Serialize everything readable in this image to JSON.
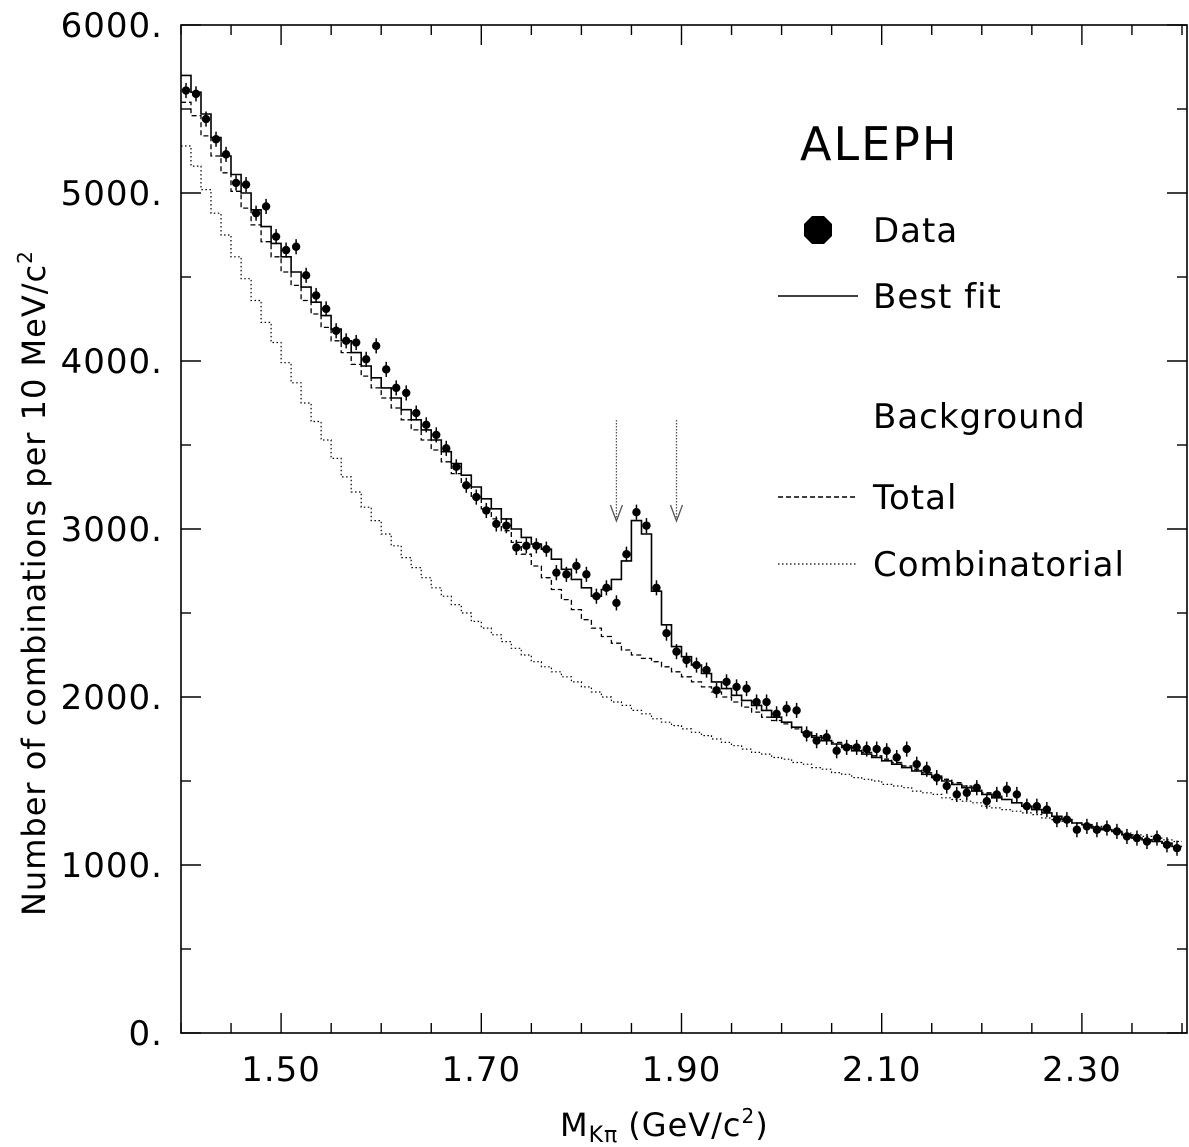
{
  "chart_data": {
    "type": "scatter",
    "experiment_label": "ALEPH",
    "xlabel": "M",
    "xlabel_subscript": "Kπ",
    "xlabel_unit": "(GeV/c",
    "xlabel_unit_power": "2",
    "xlabel_unit_close": ")",
    "ylabel": "Number of combinations per 10 MeV/c",
    "ylabel_power": "2",
    "xlim": [
      1.4,
      2.405
    ],
    "ylim": [
      0,
      6000
    ],
    "x_ticks": [
      1.5,
      1.7,
      1.9,
      2.1,
      2.3
    ],
    "x_tick_labels": [
      "1.50",
      "1.70",
      "1.90",
      "2.10",
      "2.30"
    ],
    "y_ticks": [
      0,
      1000,
      2000,
      3000,
      4000,
      5000,
      6000
    ],
    "y_tick_labels": [
      "0.",
      "1000.",
      "2000.",
      "3000.",
      "4000.",
      "5000.",
      "6000."
    ],
    "legend": {
      "data": "Data",
      "best_fit": "Best fit",
      "background_header": "Background",
      "total": "Total",
      "combinatorial": "Combinatorial"
    },
    "signal_window_arrows_x": [
      1.835,
      1.895
    ],
    "series": [
      {
        "name": "Data",
        "style": "points-with-errors",
        "x": [
          1.405,
          1.415,
          1.425,
          1.435,
          1.445,
          1.455,
          1.465,
          1.475,
          1.485,
          1.495,
          1.505,
          1.515,
          1.525,
          1.535,
          1.545,
          1.555,
          1.565,
          1.575,
          1.585,
          1.595,
          1.605,
          1.615,
          1.625,
          1.635,
          1.645,
          1.655,
          1.665,
          1.675,
          1.685,
          1.695,
          1.705,
          1.715,
          1.725,
          1.735,
          1.745,
          1.755,
          1.765,
          1.775,
          1.785,
          1.795,
          1.805,
          1.815,
          1.825,
          1.835,
          1.845,
          1.855,
          1.865,
          1.875,
          1.885,
          1.895,
          1.905,
          1.915,
          1.925,
          1.935,
          1.945,
          1.955,
          1.965,
          1.975,
          1.985,
          1.995,
          2.005,
          2.015,
          2.025,
          2.035,
          2.045,
          2.055,
          2.065,
          2.075,
          2.085,
          2.095,
          2.105,
          2.115,
          2.125,
          2.135,
          2.145,
          2.155,
          2.165,
          2.175,
          2.185,
          2.195,
          2.205,
          2.215,
          2.225,
          2.235,
          2.245,
          2.255,
          2.265,
          2.275,
          2.285,
          2.295,
          2.305,
          2.315,
          2.325,
          2.335,
          2.345,
          2.355,
          2.365,
          2.375,
          2.385,
          2.395
        ],
        "y": [
          5610,
          5590,
          5440,
          5320,
          5230,
          5060,
          5050,
          4880,
          4920,
          4740,
          4660,
          4680,
          4510,
          4390,
          4310,
          4180,
          4120,
          4110,
          4010,
          4090,
          3950,
          3840,
          3810,
          3690,
          3620,
          3560,
          3480,
          3370,
          3260,
          3190,
          3110,
          3030,
          3020,
          2890,
          2900,
          2900,
          2880,
          2740,
          2730,
          2780,
          2730,
          2600,
          2650,
          2560,
          2850,
          3100,
          3020,
          2650,
          2380,
          2270,
          2220,
          2190,
          2160,
          2040,
          2090,
          2060,
          2050,
          1970,
          1970,
          1900,
          1930,
          1920,
          1780,
          1740,
          1760,
          1680,
          1700,
          1700,
          1690,
          1690,
          1680,
          1640,
          1690,
          1600,
          1570,
          1520,
          1470,
          1420,
          1430,
          1460,
          1380,
          1420,
          1450,
          1420,
          1350,
          1350,
          1330,
          1270,
          1270,
          1210,
          1230,
          1210,
          1220,
          1200,
          1170,
          1160,
          1140,
          1160,
          1120,
          1100
        ],
        "yerr": 45
      },
      {
        "name": "Best fit",
        "style": "solid-histogram",
        "x": [
          1.4,
          1.41,
          1.42,
          1.43,
          1.44,
          1.45,
          1.46,
          1.47,
          1.48,
          1.49,
          1.5,
          1.51,
          1.52,
          1.53,
          1.54,
          1.55,
          1.56,
          1.57,
          1.58,
          1.59,
          1.6,
          1.61,
          1.62,
          1.63,
          1.64,
          1.65,
          1.66,
          1.67,
          1.68,
          1.69,
          1.7,
          1.71,
          1.72,
          1.73,
          1.74,
          1.75,
          1.76,
          1.77,
          1.78,
          1.79,
          1.8,
          1.81,
          1.82,
          1.83,
          1.84,
          1.85,
          1.86,
          1.87,
          1.88,
          1.89,
          1.9,
          1.91,
          1.92,
          1.93,
          1.94,
          1.95,
          1.96,
          1.97,
          1.98,
          1.99,
          2.0,
          2.01,
          2.02,
          2.03,
          2.04,
          2.05,
          2.06,
          2.07,
          2.08,
          2.09,
          2.1,
          2.11,
          2.12,
          2.13,
          2.14,
          2.15,
          2.16,
          2.17,
          2.18,
          2.19,
          2.2,
          2.21,
          2.22,
          2.23,
          2.24,
          2.25,
          2.26,
          2.27,
          2.28,
          2.29,
          2.3,
          2.31,
          2.32,
          2.33,
          2.34,
          2.35,
          2.36,
          2.37,
          2.38,
          2.39
        ],
        "y": [
          5700,
          5600,
          5470,
          5330,
          5220,
          5110,
          5000,
          4900,
          4800,
          4700,
          4620,
          4530,
          4440,
          4350,
          4270,
          4190,
          4120,
          4050,
          3970,
          3900,
          3840,
          3780,
          3710,
          3650,
          3590,
          3530,
          3460,
          3390,
          3320,
          3250,
          3180,
          3120,
          3060,
          3000,
          2950,
          2910,
          2880,
          2820,
          2760,
          2700,
          2650,
          2600,
          2640,
          2700,
          2810,
          3050,
          2970,
          2630,
          2430,
          2300,
          2240,
          2190,
          2140,
          2090,
          2050,
          2010,
          1980,
          1950,
          1920,
          1880,
          1850,
          1820,
          1790,
          1760,
          1740,
          1720,
          1700,
          1680,
          1660,
          1640,
          1620,
          1600,
          1580,
          1560,
          1540,
          1520,
          1500,
          1480,
          1460,
          1440,
          1420,
          1400,
          1390,
          1370,
          1350,
          1330,
          1310,
          1290,
          1270,
          1250,
          1240,
          1220,
          1210,
          1200,
          1180,
          1160,
          1150,
          1140,
          1130,
          1110
        ]
      },
      {
        "name": "Total",
        "style": "dashed-histogram",
        "x": [
          1.4,
          1.41,
          1.42,
          1.43,
          1.44,
          1.45,
          1.46,
          1.47,
          1.48,
          1.49,
          1.5,
          1.51,
          1.52,
          1.53,
          1.54,
          1.55,
          1.56,
          1.57,
          1.58,
          1.59,
          1.6,
          1.61,
          1.62,
          1.63,
          1.64,
          1.65,
          1.66,
          1.67,
          1.68,
          1.69,
          1.7,
          1.71,
          1.72,
          1.73,
          1.74,
          1.75,
          1.76,
          1.77,
          1.78,
          1.79,
          1.8,
          1.81,
          1.82,
          1.83,
          1.84,
          1.85,
          1.86,
          1.87,
          1.88,
          1.89,
          1.9,
          1.91,
          1.92,
          1.93,
          1.94,
          1.95,
          1.96,
          1.97,
          1.98,
          1.99,
          2.0,
          2.01,
          2.02,
          2.03,
          2.04,
          2.05,
          2.06,
          2.07,
          2.08,
          2.09,
          2.1,
          2.11,
          2.12,
          2.13,
          2.14,
          2.15,
          2.16,
          2.17,
          2.18,
          2.19,
          2.2,
          2.21,
          2.22,
          2.23,
          2.24,
          2.25,
          2.26,
          2.27,
          2.28,
          2.29,
          2.3,
          2.31,
          2.32,
          2.33,
          2.34,
          2.35,
          2.36,
          2.37,
          2.38,
          2.39
        ],
        "y": [
          5540,
          5460,
          5340,
          5220,
          5120,
          5010,
          4910,
          4810,
          4710,
          4620,
          4530,
          4450,
          4360,
          4280,
          4200,
          4120,
          4050,
          3980,
          3910,
          3840,
          3780,
          3720,
          3650,
          3590,
          3530,
          3470,
          3400,
          3330,
          3260,
          3190,
          3120,
          3060,
          2990,
          2920,
          2850,
          2780,
          2710,
          2640,
          2580,
          2520,
          2460,
          2410,
          2360,
          2320,
          2280,
          2250,
          2230,
          2210,
          2180,
          2150,
          2120,
          2090,
          2060,
          2030,
          2000,
          1970,
          1940,
          1910,
          1880,
          1860,
          1840,
          1810,
          1790,
          1770,
          1750,
          1730,
          1710,
          1690,
          1670,
          1650,
          1630,
          1610,
          1590,
          1570,
          1550,
          1530,
          1510,
          1490,
          1470,
          1450,
          1430,
          1410,
          1390,
          1370,
          1350,
          1330,
          1310,
          1290,
          1270,
          1250,
          1240,
          1220,
          1210,
          1200,
          1180,
          1160,
          1150,
          1140,
          1130,
          1110
        ]
      },
      {
        "name": "Combinatorial",
        "style": "dotted-histogram",
        "x": [
          1.4,
          1.41,
          1.42,
          1.43,
          1.44,
          1.45,
          1.46,
          1.47,
          1.48,
          1.49,
          1.5,
          1.51,
          1.52,
          1.53,
          1.54,
          1.55,
          1.56,
          1.57,
          1.58,
          1.59,
          1.6,
          1.61,
          1.62,
          1.63,
          1.64,
          1.65,
          1.66,
          1.67,
          1.68,
          1.69,
          1.7,
          1.71,
          1.72,
          1.73,
          1.74,
          1.75,
          1.76,
          1.77,
          1.78,
          1.79,
          1.8,
          1.81,
          1.82,
          1.83,
          1.84,
          1.85,
          1.86,
          1.87,
          1.88,
          1.89,
          1.9,
          1.91,
          1.92,
          1.93,
          1.94,
          1.95,
          1.96,
          1.97,
          1.98,
          1.99,
          2.0,
          2.01,
          2.02,
          2.03,
          2.04,
          2.05,
          2.06,
          2.07,
          2.08,
          2.09,
          2.1,
          2.11,
          2.12,
          2.13,
          2.14,
          2.15,
          2.16,
          2.17,
          2.18,
          2.19,
          2.2,
          2.21,
          2.22,
          2.23,
          2.24,
          2.25,
          2.26,
          2.27,
          2.28,
          2.29,
          2.3,
          2.31,
          2.32,
          2.33,
          2.34,
          2.35,
          2.36,
          2.37,
          2.38,
          2.39
        ],
        "y": [
          5280,
          5160,
          5020,
          4880,
          4750,
          4620,
          4490,
          4360,
          4230,
          4110,
          3990,
          3870,
          3750,
          3640,
          3530,
          3420,
          3310,
          3220,
          3130,
          3050,
          2970,
          2900,
          2830,
          2770,
          2710,
          2650,
          2600,
          2550,
          2500,
          2450,
          2410,
          2370,
          2330,
          2290,
          2250,
          2210,
          2180,
          2150,
          2120,
          2090,
          2060,
          2030,
          2000,
          1970,
          1950,
          1920,
          1900,
          1870,
          1850,
          1830,
          1810,
          1790,
          1770,
          1750,
          1730,
          1710,
          1690,
          1670,
          1660,
          1640,
          1630,
          1610,
          1600,
          1580,
          1570,
          1550,
          1540,
          1520,
          1510,
          1500,
          1480,
          1470,
          1460,
          1440,
          1430,
          1420,
          1400,
          1390,
          1380,
          1370,
          1350,
          1340,
          1330,
          1320,
          1310,
          1300,
          1280,
          1270,
          1260,
          1250,
          1240,
          1230,
          1210,
          1200,
          1190,
          1180,
          1170,
          1160,
          1150,
          1140
        ]
      }
    ]
  }
}
